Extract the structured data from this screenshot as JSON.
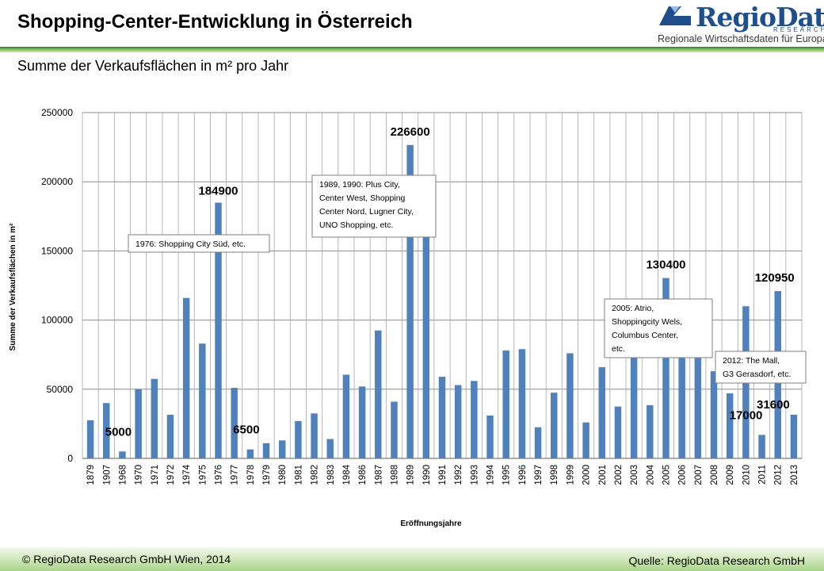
{
  "header": {
    "title": "Shopping-Center-Entwicklung in Österreich",
    "logo_text": "RegioData",
    "logo_sub": "RESEARCH",
    "logo_tagline": "Regionale Wirtschaftsdaten für Europa"
  },
  "subtitle": "Summe  der Verkaufsflächen  in m² pro Jahr",
  "footer": {
    "copyright": "© RegioData Research GmbH Wien, 2014",
    "source": "Quelle:  RegioData Research GmbH"
  },
  "colors": {
    "bar": "#4f81bd",
    "header_rule": "#2f7a2f",
    "footer": "#b5d99c",
    "logo": "#1f4e8c"
  },
  "chart_data": {
    "type": "bar",
    "xlabel": "Eröffnungsjahre",
    "ylabel": "Summe der Verkaufsflächen  in m²",
    "ylim": [
      0,
      250000
    ],
    "yticks": [
      0,
      50000,
      100000,
      150000,
      200000,
      250000
    ],
    "grid": true,
    "categories": [
      "1879",
      "1907",
      "1968",
      "1970",
      "1971",
      "1972",
      "1974",
      "1975",
      "1976",
      "1977",
      "1978",
      "1979",
      "1980",
      "1981",
      "1982",
      "1983",
      "1984",
      "1986",
      "1987",
      "1988",
      "1989",
      "1990",
      "1991",
      "1992",
      "1993",
      "1994",
      "1995",
      "1996",
      "1997",
      "1998",
      "1999",
      "2000",
      "2001",
      "2002",
      "2003",
      "2004",
      "2005",
      "2006",
      "2007",
      "2008",
      "2009",
      "2010",
      "2011",
      "2012",
      "2013"
    ],
    "values": [
      27500,
      40000,
      5000,
      50000,
      57500,
      31500,
      116000,
      83000,
      184900,
      51000,
      6500,
      11000,
      13000,
      27000,
      32500,
      14000,
      60500,
      52000,
      92500,
      41000,
      226600,
      165000,
      59000,
      53000,
      56000,
      31000,
      78000,
      79000,
      22500,
      47500,
      76000,
      26000,
      66000,
      37500,
      78000,
      38500,
      130400,
      78000,
      78000,
      63000,
      47000,
      110000,
      17000,
      120950,
      31600
    ],
    "data_labels": [
      {
        "category": "1968",
        "text": "5000"
      },
      {
        "category": "1976",
        "text": "184900"
      },
      {
        "category": "1978",
        "text": "6500"
      },
      {
        "category": "1989",
        "text": "226600"
      },
      {
        "category": "2005",
        "text": "130400"
      },
      {
        "category": "2011",
        "text": "17000"
      },
      {
        "category": "2012",
        "text": "120950"
      },
      {
        "category": "2013",
        "text": "31600"
      }
    ],
    "annotations": [
      {
        "lines": [
          "1976: Shopping City Süd, etc."
        ]
      },
      {
        "lines": [
          "1989, 1990: Plus City,",
          "Center West, Shopping",
          "Center Nord, Lugner City,",
          "UNO Shopping, etc."
        ]
      },
      {
        "lines": [
          "2005: Atrio,",
          "Shoppingcity Wels,",
          "Columbus Center,",
          "etc."
        ]
      },
      {
        "lines": [
          "2012: The Mall,",
          "G3 Gerasdorf, etc."
        ]
      }
    ]
  }
}
